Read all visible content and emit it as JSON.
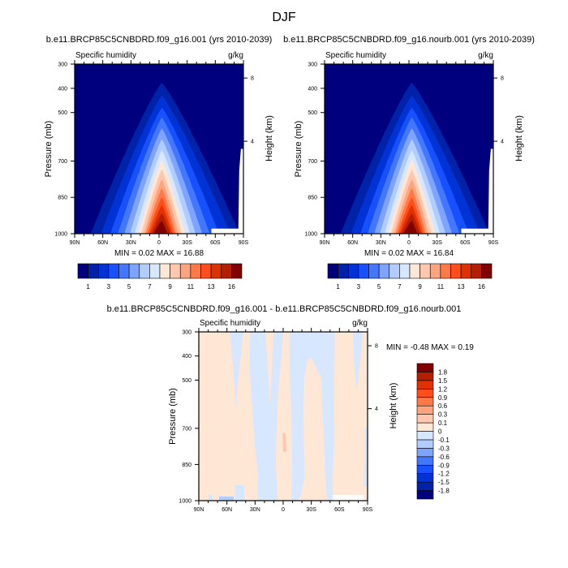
{
  "main_title": "DJF",
  "chart_data": [
    {
      "type": "heatmap",
      "panel": "top-left",
      "title": "b.e11.BRCP85C5CNBDRD.f09_g16.001 (yrs 2010-2039)",
      "left_string": "Specific humidity",
      "right_string": "g/kg",
      "ylabel": "Pressure (mb)",
      "ylabel_right": "Height (km)",
      "x_ticks": [
        "90N",
        "60N",
        "30N",
        "0",
        "30S",
        "60S",
        "90S"
      ],
      "x_range_lat": [
        90,
        -90
      ],
      "y_ticks": [
        "300",
        "400",
        "500",
        "700",
        "850",
        "1000"
      ],
      "y_tick_values": [
        300,
        400,
        500,
        700,
        850,
        1000
      ],
      "y_range": [
        300,
        1000
      ],
      "height_ticks": [
        "8",
        "4"
      ],
      "min_max_text": "MIN =  0.02  MAX =  16.88",
      "colorbar_labels": [
        "1",
        "3",
        "5",
        "7",
        "9",
        "11",
        "13",
        "16"
      ],
      "peak_lat": -3,
      "envelope": [
        {
          "top_hPa": 377,
          "north_lat": 73,
          "south_lat": -86
        },
        {
          "top_hPa": 430,
          "north_lat": 62,
          "south_lat": -76
        },
        {
          "top_hPa": 480,
          "north_lat": 52,
          "south_lat": -64
        },
        {
          "top_hPa": 520,
          "north_lat": 44,
          "south_lat": -54
        },
        {
          "top_hPa": 565,
          "north_lat": 37,
          "south_lat": -46
        },
        {
          "top_hPa": 610,
          "north_lat": 31,
          "south_lat": -39
        },
        {
          "top_hPa": 655,
          "north_lat": 26,
          "south_lat": -33
        },
        {
          "top_hPa": 695,
          "north_lat": 22,
          "south_lat": -28
        },
        {
          "top_hPa": 735,
          "north_lat": 19,
          "south_lat": -24
        },
        {
          "top_hPa": 775,
          "north_lat": 16,
          "south_lat": -21
        },
        {
          "top_hPa": 812,
          "north_lat": 14,
          "south_lat": -18
        },
        {
          "top_hPa": 850,
          "north_lat": 12,
          "south_lat": -16
        },
        {
          "top_hPa": 882,
          "north_lat": 10,
          "south_lat": -14
        },
        {
          "top_hPa": 915,
          "north_lat": 8,
          "south_lat": -12
        },
        {
          "top_hPa": 946,
          "north_lat": 6,
          "south_lat": -9
        }
      ]
    },
    {
      "type": "heatmap",
      "panel": "top-right",
      "title": "b.e11.BRCP85C5CNBDRD.f09_g16.nourb.001 (yrs 2010-2039)",
      "left_string": "Specific humidity",
      "right_string": "g/kg",
      "ylabel": "Pressure (mb)",
      "ylabel_right": "Height (km)",
      "x_ticks": [
        "90N",
        "60N",
        "30N",
        "0",
        "30S",
        "60S",
        "90S"
      ],
      "y_ticks": [
        "300",
        "400",
        "500",
        "700",
        "850",
        "1000"
      ],
      "height_ticks": [
        "8",
        "4"
      ],
      "min_max_text": "MIN =  0.02  MAX =  16.84",
      "colorbar_labels": [
        "1",
        "3",
        "5",
        "7",
        "9",
        "11",
        "13",
        "16"
      ]
    },
    {
      "type": "heatmap",
      "panel": "bottom",
      "title": "b.e11.BRCP85C5CNBDRD.f09_g16.001 - b.e11.BRCP85C5CNBDRD.f09_g16.nourb.001",
      "left_string": "Specific humidity",
      "right_string": "g/kg",
      "ylabel": "Pressure (mb)",
      "ylabel_right": "Height (km)",
      "x_ticks": [
        "90N",
        "60N",
        "30N",
        "0",
        "30S",
        "60S",
        "90S"
      ],
      "y_ticks": [
        "300",
        "400",
        "500",
        "700",
        "850",
        "1000"
      ],
      "height_ticks": [
        "8",
        "4"
      ],
      "min_max_text": "MIN =  -0.48  MAX =   0.19",
      "colorbar_labels": [
        "-1.8",
        "-1.5",
        "-1.2",
        "-0.9",
        "-0.6",
        "-0.3",
        "-0.1",
        "0",
        "0.1",
        "0.3",
        "0.6",
        "0.9",
        "1.2",
        "1.5",
        "1.8"
      ]
    }
  ],
  "colors": [
    "#00007f",
    "#0022a8",
    "#0033d6",
    "#1650ff",
    "#4477ff",
    "#7ea4ff",
    "#b1ccff",
    "#d7e7ff",
    "#ffe7d5",
    "#ffc7ad",
    "#ffa47e",
    "#ff7a47",
    "#ff4d1c",
    "#e03200",
    "#b31f00",
    "#800000"
  ]
}
